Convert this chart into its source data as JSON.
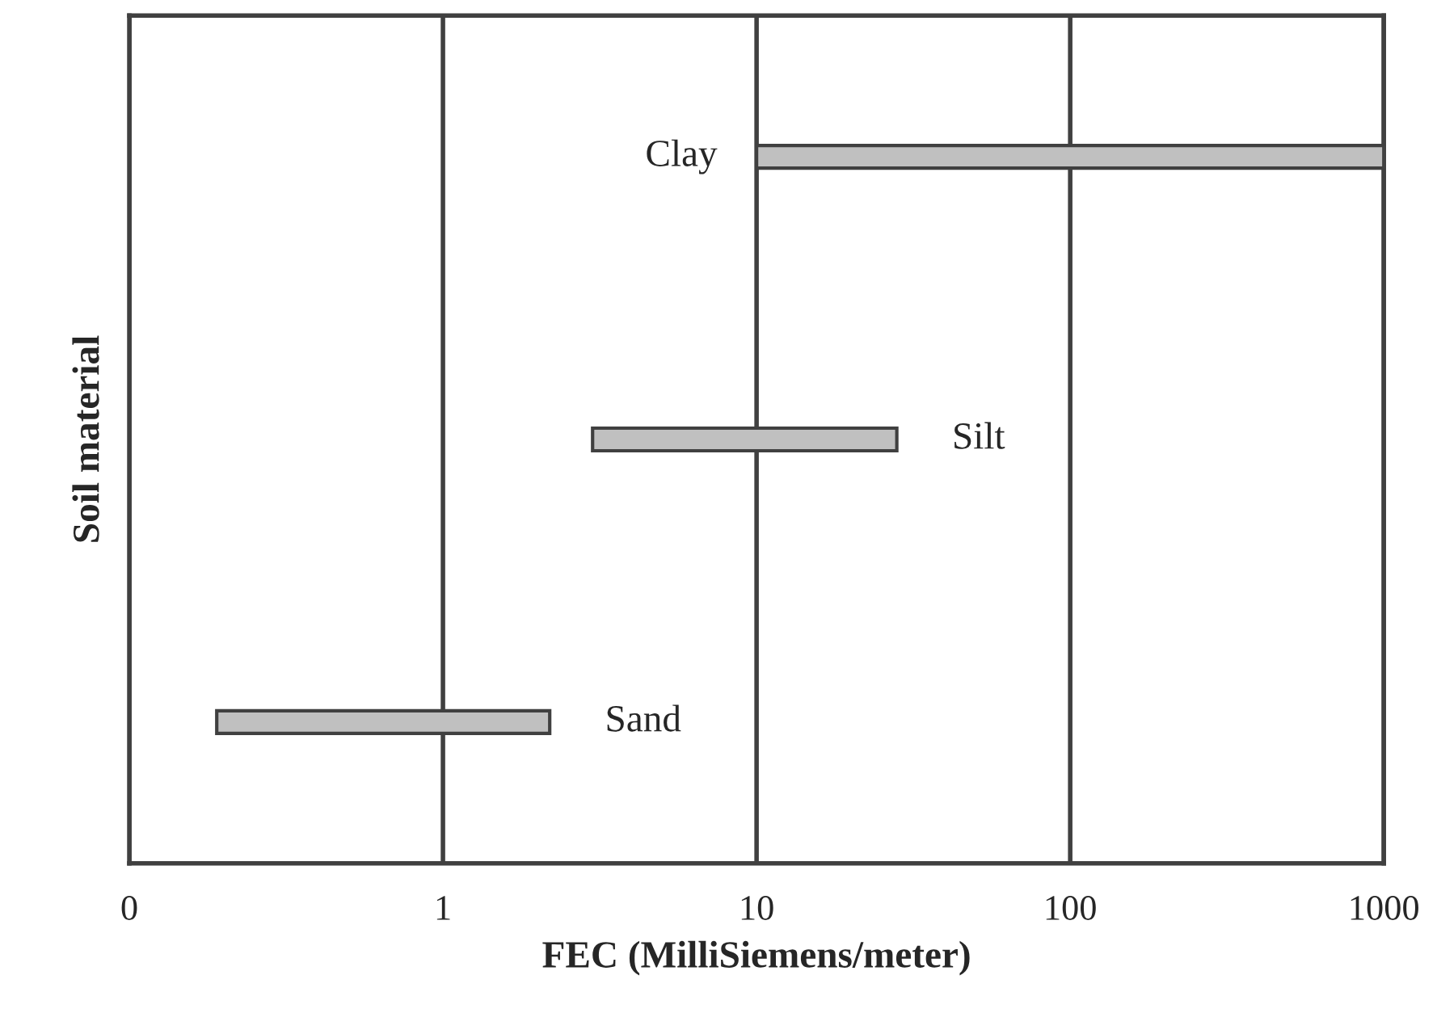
{
  "chart_data": {
    "type": "bar",
    "orientation": "horizontal",
    "xlabel": "FEC (MilliSiemens/meter)",
    "ylabel": "Soil material",
    "categories": [
      "Clay",
      "Silt",
      "Sand"
    ],
    "base": [
      10,
      3,
      0.19
    ],
    "values": [
      990,
      25,
      2.0
    ],
    "color": "#c0c0c0",
    "log": "x",
    "xlim": [
      0.1,
      1000
    ],
    "xticks": [
      {
        "value": 0.1,
        "label": "0"
      },
      1,
      10,
      100,
      1000
    ],
    "tick_labels": "x",
    "grid": "x"
  }
}
